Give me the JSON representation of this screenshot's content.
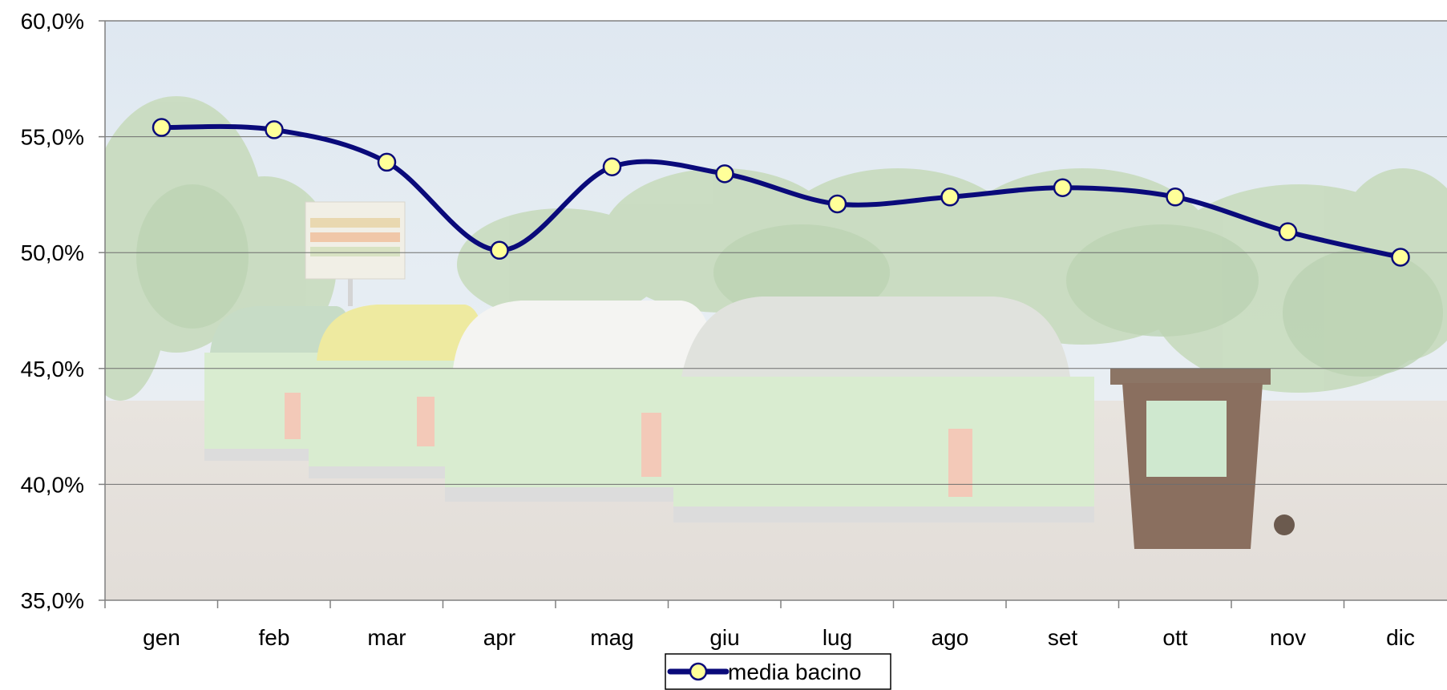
{
  "chart_data": {
    "type": "line",
    "categories": [
      "gen",
      "feb",
      "mar",
      "apr",
      "mag",
      "giu",
      "lug",
      "ago",
      "set",
      "ott",
      "nov",
      "dic"
    ],
    "series": [
      {
        "name": "media bacino",
        "values": [
          55.4,
          55.3,
          53.9,
          50.1,
          53.7,
          53.4,
          52.1,
          52.4,
          52.8,
          52.4,
          50.9,
          49.8
        ],
        "color": "#0a0a7a",
        "marker_color": "#ffff99"
      }
    ],
    "ylim": [
      35,
      60
    ],
    "yticks": [
      "35,0%",
      "40,0%",
      "45,0%",
      "50,0%",
      "55,0%",
      "60,0%"
    ],
    "grid": true,
    "legend": "bottom-center",
    "background": "photo of recycling containers in a park",
    "title": "",
    "xlabel": "",
    "ylabel": ""
  }
}
